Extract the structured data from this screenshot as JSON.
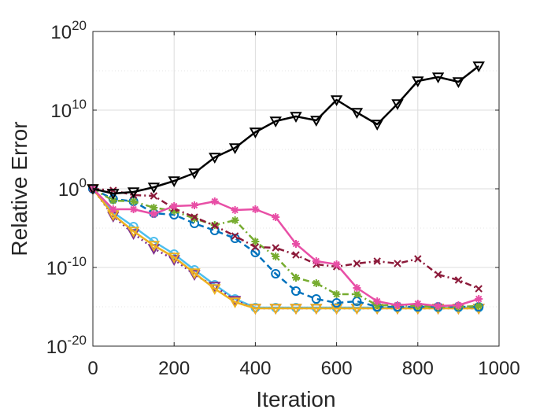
{
  "chart_data": {
    "type": "line",
    "xlabel": "Iteration",
    "ylabel": "Relative Error",
    "xlim": [
      0,
      1000
    ],
    "ylim_exponent": [
      -20,
      20
    ],
    "yscale": "log",
    "grid": true,
    "x_ticks": [
      0,
      200,
      400,
      600,
      800,
      1000
    ],
    "y_ticks": [
      {
        "base": "10",
        "exp": "-20"
      },
      {
        "base": "10",
        "exp": "-10"
      },
      {
        "base": "10",
        "exp": "0"
      },
      {
        "base": "10",
        "exp": "10"
      },
      {
        "base": "10",
        "exp": "20"
      }
    ],
    "series": [
      {
        "color": "#000000",
        "marker": "triangle-down",
        "dash": "solid",
        "x": [
          0,
          50,
          100,
          150,
          200,
          250,
          300,
          350,
          400,
          450,
          500,
          550,
          600,
          650,
          700,
          750,
          800,
          850,
          900,
          950
        ],
        "log10_y": [
          0,
          -0.6,
          -0.4,
          0.2,
          1.0,
          2.0,
          4.0,
          5.2,
          7.2,
          8.6,
          9.2,
          8.7,
          11.3,
          9.7,
          8.2,
          10.8,
          13.7,
          14.2,
          13.6,
          15.6
        ]
      },
      {
        "color": "#e84fa6",
        "marker": "asterisk",
        "dash": "solid",
        "x": [
          0,
          50,
          100,
          150,
          200,
          250,
          300,
          350,
          400,
          450,
          500,
          550,
          600,
          650,
          700,
          750,
          800,
          850,
          900,
          950
        ],
        "log10_y": [
          0,
          -2.6,
          -2.6,
          -3.2,
          -2.2,
          -2.1,
          -1.6,
          -2.7,
          -2.6,
          -3.6,
          -7.0,
          -9.2,
          -9.6,
          -12.6,
          -14.3,
          -14.8,
          -14.6,
          -14.9,
          -14.8,
          -14.0
        ]
      },
      {
        "color": "#8c1a3a",
        "marker": "x",
        "dash": "dashdot",
        "x": [
          0,
          50,
          100,
          150,
          200,
          250,
          300,
          350,
          400,
          450,
          500,
          550,
          600,
          650,
          700,
          750,
          800,
          850,
          900,
          950
        ],
        "log10_y": [
          0,
          -0.2,
          -0.8,
          -0.9,
          -2.5,
          -3.6,
          -4.7,
          -6.0,
          -7.4,
          -7.5,
          -8.4,
          -9.6,
          -9.9,
          -9.5,
          -9.2,
          -9.5,
          -8.9,
          -10.9,
          -11.6,
          -12.7
        ]
      },
      {
        "color": "#77ac30",
        "marker": "asterisk",
        "dash": "dashdot",
        "x": [
          0,
          50,
          100,
          150,
          200,
          250,
          300,
          350,
          400,
          450,
          500,
          550,
          600,
          650,
          700,
          750,
          800,
          850,
          900,
          950
        ],
        "log10_y": [
          0,
          -1.5,
          -1.6,
          -2.4,
          -2.8,
          -3.8,
          -4.6,
          -4.0,
          -6.7,
          -8.6,
          -11.3,
          -12.0,
          -13.4,
          -13.4,
          -14.8,
          -14.8,
          -14.9,
          -15.0,
          -15.0,
          -14.9
        ]
      },
      {
        "color": "#0072bd",
        "marker": "circle",
        "dash": "dashed",
        "x": [
          0,
          50,
          100,
          150,
          200,
          250,
          300,
          350,
          400,
          450,
          500,
          550,
          600,
          650,
          700,
          750,
          800,
          850,
          900,
          950
        ],
        "log10_y": [
          0,
          -1.3,
          -1.6,
          -3.1,
          -3.3,
          -4.4,
          -5.3,
          -6.3,
          -8.1,
          -10.8,
          -13.0,
          -14.0,
          -14.5,
          -14.3,
          -15.0,
          -15.0,
          -15.0,
          -15.0,
          -15.0,
          -15.0
        ]
      },
      {
        "color": "#edb120",
        "marker": "triangle-down",
        "dash": "solid",
        "x": [
          0,
          50,
          100,
          150,
          200,
          250,
          300,
          350,
          400,
          450,
          500,
          550,
          600,
          650,
          700,
          750,
          800,
          850,
          900,
          950
        ],
        "log10_y": [
          0,
          -3.3,
          -5.4,
          -7.2,
          -8.7,
          -10.7,
          -12.7,
          -14.4,
          -15.2,
          -15.2,
          -15.2,
          -15.2,
          -15.2,
          -15.2,
          -15.2,
          -15.2,
          -15.2,
          -15.2,
          -15.2,
          -15.2
        ]
      },
      {
        "color": "#7e2f8e",
        "marker": "triangle-down",
        "dash": "dotted",
        "x": [
          0,
          50,
          100,
          150,
          200,
          250,
          300,
          350,
          400,
          450,
          500,
          550,
          600,
          650,
          700,
          750,
          800,
          850,
          900,
          950
        ],
        "log10_y": [
          0,
          -3.5,
          -5.7,
          -7.6,
          -9.0,
          -10.9,
          -12.4,
          -14.2,
          -15.2,
          -15.2,
          -15.2,
          -15.2,
          -15.2,
          -15.2,
          -15.2,
          -15.2,
          -15.2,
          -15.2,
          -15.2,
          -15.2
        ]
      },
      {
        "color": "#4dbeee",
        "marker": "circle",
        "dash": "solid",
        "x": [
          0,
          50,
          100,
          150,
          200,
          250,
          300,
          350,
          400,
          450,
          500,
          550,
          600,
          650,
          700,
          750,
          800,
          850,
          900,
          950
        ],
        "log10_y": [
          0,
          -3.0,
          -4.8,
          -6.7,
          -8.3,
          -10.3,
          -12.2,
          -14.0,
          -15.1,
          -15.1,
          -15.1,
          -15.1,
          -15.1,
          -15.1,
          -15.1,
          -15.1,
          -15.1,
          -15.1,
          -15.1,
          -15.1
        ]
      }
    ]
  }
}
